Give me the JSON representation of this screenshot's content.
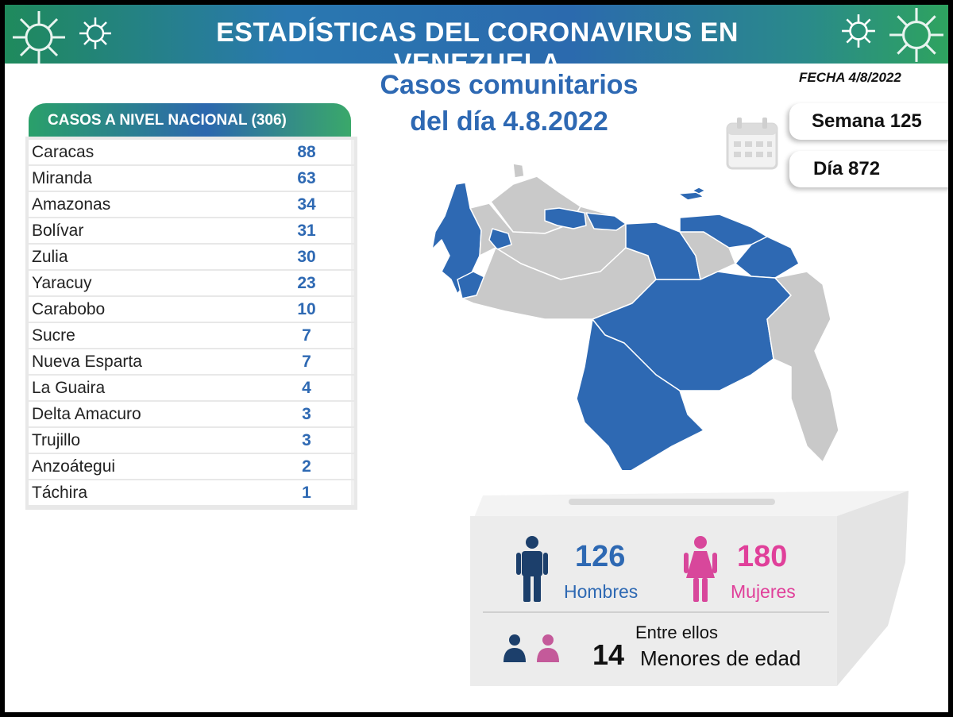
{
  "header": {
    "title": "ESTADÍSTICAS DEL CORONAVIRUS EN VENEZUELA"
  },
  "fecha": "FECHA 4/8/2022",
  "main_title": {
    "line1": "Casos comunitarios",
    "line2": "del día 4.8.2022"
  },
  "table": {
    "title": "CASOS A NIVEL NACIONAL  (306)",
    "rows": [
      {
        "name": "Caracas",
        "value": "88"
      },
      {
        "name": "Miranda",
        "value": "63"
      },
      {
        "name": "Amazonas",
        "value": "34"
      },
      {
        "name": "Bolívar",
        "value": "31"
      },
      {
        "name": "Zulia",
        "value": "30"
      },
      {
        "name": "Yaracuy",
        "value": "23"
      },
      {
        "name": "Carabobo",
        "value": "10"
      },
      {
        "name": "Sucre",
        "value": "7"
      },
      {
        "name": "Nueva Esparta",
        "value": "7"
      },
      {
        "name": "La Guaira",
        "value": "4"
      },
      {
        "name": "Delta Amacuro",
        "value": "3"
      },
      {
        "name": "Trujillo",
        "value": "3"
      },
      {
        "name": "Anzoátegui",
        "value": "2"
      },
      {
        "name": "Táchira",
        "value": "1"
      }
    ]
  },
  "calendar": {
    "semana": "Semana 125",
    "dia": "Día 872",
    "icon": "calendar-icon"
  },
  "stats": {
    "men_count": "126",
    "men_label": "Hombres",
    "women_count": "180",
    "women_label": "Mujeres",
    "minors_prefix": "Entre ellos",
    "minors_count": "14",
    "minors_label": "Menores de edad"
  },
  "colors": {
    "blue": "#2e69b3",
    "navy": "#1c3f6b",
    "pink": "#e0409a",
    "gray_region": "#c9c9c9",
    "highlight_region": "#2e69b3"
  }
}
